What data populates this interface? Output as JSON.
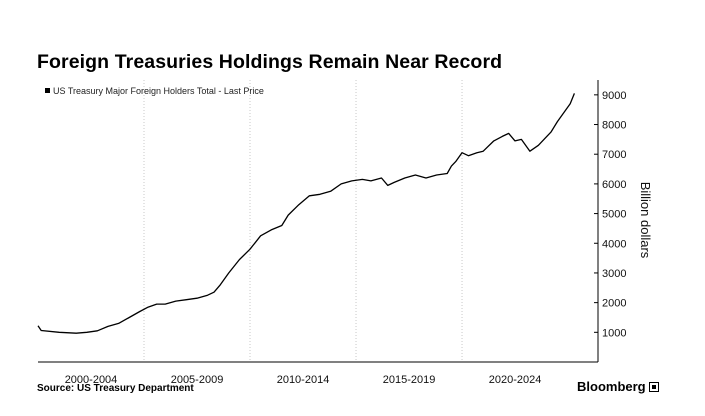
{
  "title": "Foreign Treasuries Holdings Remain Near Record",
  "source": "Source: US Treasury Department",
  "brand": "Bloomberg",
  "chart_data": {
    "type": "line",
    "title": "Foreign Treasuries Holdings Remain Near Record",
    "ylabel": "Billion dollars",
    "xlabel": "",
    "y_axis_side": "right",
    "ylim": [
      0,
      9500
    ],
    "yticks": [
      1000,
      2000,
      3000,
      4000,
      5000,
      6000,
      7000,
      8000,
      9000
    ],
    "ytick_labels": [
      "1000",
      "2000",
      "3000",
      "4000",
      "5000",
      "6000",
      "7000",
      "8000",
      "9000"
    ],
    "xlim": [
      2000.0,
      2025.8
    ],
    "xtick_labels": [
      "2000-2004",
      "2005-2009",
      "2010-2014",
      "2015-2019",
      "2020-2024"
    ],
    "xtick_centers": [
      2002.5,
      2007.5,
      2012.5,
      2017.5,
      2022.5
    ],
    "xgrid_at": [
      2005,
      2010,
      2015,
      2020
    ],
    "grid": "vertical-dashed",
    "legend_placement": "top-left",
    "legend": [
      "US Treasury Major Foreign Holders Total - Last Price"
    ],
    "series": [
      {
        "name": "US Treasury Major Foreign Holders Total - Last Price",
        "color": "#000000",
        "x": [
          2000.0,
          2000.15,
          2001.0,
          2001.8,
          2002.3,
          2002.8,
          2003.3,
          2003.8,
          2004.3,
          2004.8,
          2005.2,
          2005.6,
          2006.0,
          2006.5,
          2007.0,
          2007.5,
          2008.0,
          2008.3,
          2008.6,
          2009.0,
          2009.5,
          2010.0,
          2010.5,
          2011.0,
          2011.5,
          2011.8,
          2012.3,
          2012.8,
          2013.3,
          2013.8,
          2014.3,
          2014.8,
          2015.3,
          2015.7,
          2016.2,
          2016.5,
          2016.8,
          2017.3,
          2017.8,
          2018.3,
          2018.8,
          2019.3,
          2019.5,
          2019.7,
          2020.0,
          2020.3,
          2020.7,
          2021.0,
          2021.5,
          2021.9,
          2022.2,
          2022.5,
          2022.8,
          2023.2,
          2023.6,
          2024.0,
          2024.2,
          2024.5,
          2024.9,
          2025.1,
          2025.3
        ],
        "y": [
          1220,
          1060,
          1000,
          970,
          1000,
          1050,
          1200,
          1300,
          1500,
          1700,
          1850,
          1950,
          1950,
          2050,
          2100,
          2150,
          2250,
          2350,
          2600,
          3000,
          3450,
          3800,
          4250,
          4450,
          4600,
          4950,
          5300,
          5600,
          5650,
          5750,
          6000,
          6100,
          6150,
          6100,
          6200,
          5950,
          6050,
          6200,
          6300,
          6200,
          6300,
          6350,
          6600,
          6750,
          7050,
          6950,
          7050,
          7100,
          7450,
          7600,
          7700,
          7450,
          7500,
          7100,
          7300,
          7600,
          7750,
          8100,
          8500,
          8700,
          9050
        ]
      }
    ]
  }
}
